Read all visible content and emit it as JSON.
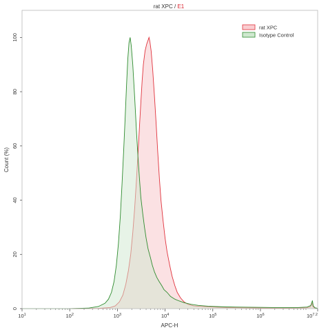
{
  "chart_data": {
    "type": "area",
    "title": {
      "main": "rat XPC",
      "separator": " / ",
      "gate": "E1",
      "gate_color": "#d9232e"
    },
    "xlabel": "APC-H",
    "ylabel": "Count (%)",
    "x_scale": "log10",
    "xlim": [
      10,
      15848932
    ],
    "ylim": [
      0,
      110
    ],
    "x_ticks": [
      {
        "value": 10,
        "base": "10",
        "exp": "1"
      },
      {
        "value": 100,
        "base": "10",
        "exp": "2"
      },
      {
        "value": 1000,
        "base": "10",
        "exp": "3"
      },
      {
        "value": 10000,
        "base": "10",
        "exp": "4"
      },
      {
        "value": 100000,
        "base": "10",
        "exp": "5"
      },
      {
        "value": 1000000,
        "base": "10",
        "exp": "6"
      },
      {
        "value": 15848932,
        "base": "10",
        "exp": "7.2"
      }
    ],
    "y_ticks": [
      0,
      20,
      40,
      60,
      80,
      100
    ],
    "legend_position": "top-right",
    "grid": false,
    "series": [
      {
        "name": "rat XPC",
        "stroke": "#e0323c",
        "fill": "#f9cdd0",
        "fill_opacity": 0.6,
        "points": [
          [
            10,
            0
          ],
          [
            100,
            0
          ],
          [
            400,
            0.1
          ],
          [
            700,
            0.4
          ],
          [
            900,
            1
          ],
          [
            1100,
            2.5
          ],
          [
            1300,
            5
          ],
          [
            1500,
            9
          ],
          [
            1700,
            14
          ],
          [
            1900,
            20
          ],
          [
            2100,
            28
          ],
          [
            2300,
            37
          ],
          [
            2500,
            47
          ],
          [
            2700,
            57
          ],
          [
            2900,
            67
          ],
          [
            3100,
            76
          ],
          [
            3300,
            84
          ],
          [
            3500,
            90
          ],
          [
            3800,
            95
          ],
          [
            4100,
            97.5
          ],
          [
            4400,
            99
          ],
          [
            4600,
            100
          ],
          [
            4800,
            98.5
          ],
          [
            5100,
            95
          ],
          [
            5500,
            88
          ],
          [
            6000,
            78
          ],
          [
            6500,
            68
          ],
          [
            7000,
            58
          ],
          [
            7600,
            48
          ],
          [
            8200,
            40
          ],
          [
            9000,
            33
          ],
          [
            10000,
            26
          ],
          [
            11000,
            21
          ],
          [
            12500,
            16
          ],
          [
            14000,
            12
          ],
          [
            16000,
            8.5
          ],
          [
            18000,
            6
          ],
          [
            21000,
            4
          ],
          [
            25000,
            2.5
          ],
          [
            30000,
            1.6
          ],
          [
            40000,
            1
          ],
          [
            60000,
            0.8
          ],
          [
            100000,
            0.6
          ],
          [
            200000,
            0.4
          ],
          [
            500000,
            0.3
          ],
          [
            1000000,
            0.25
          ],
          [
            3000000,
            0.2
          ],
          [
            9000000,
            0.3
          ],
          [
            11000000,
            0.6
          ],
          [
            12000000,
            2.2
          ],
          [
            12600000,
            0.8
          ],
          [
            13500000,
            0.3
          ],
          [
            15848932,
            0.1
          ]
        ]
      },
      {
        "name": "Isotype Control",
        "stroke": "#2e8b2e",
        "fill": "#cfe8cf",
        "fill_opacity": 0.5,
        "points": [
          [
            10,
            0
          ],
          [
            100,
            0
          ],
          [
            250,
            0.2
          ],
          [
            400,
            0.8
          ],
          [
            550,
            2
          ],
          [
            650,
            3.5
          ],
          [
            750,
            6
          ],
          [
            850,
            10
          ],
          [
            950,
            16
          ],
          [
            1050,
            24
          ],
          [
            1150,
            34
          ],
          [
            1250,
            46
          ],
          [
            1350,
            58
          ],
          [
            1450,
            70
          ],
          [
            1550,
            82
          ],
          [
            1650,
            92
          ],
          [
            1750,
            98
          ],
          [
            1850,
            100
          ],
          [
            1950,
            97
          ],
          [
            2100,
            90
          ],
          [
            2300,
            78
          ],
          [
            2500,
            66
          ],
          [
            2700,
            56
          ],
          [
            2900,
            48
          ],
          [
            3100,
            41
          ],
          [
            3400,
            35
          ],
          [
            3700,
            30
          ],
          [
            4000,
            26
          ],
          [
            4400,
            22
          ],
          [
            4900,
            19
          ],
          [
            5400,
            16
          ],
          [
            6000,
            13.5
          ],
          [
            6700,
            11.5
          ],
          [
            7500,
            10
          ],
          [
            8500,
            8.5
          ],
          [
            9500,
            7
          ],
          [
            11000,
            6
          ],
          [
            13000,
            4.5
          ],
          [
            16000,
            3.5
          ],
          [
            20000,
            2.8
          ],
          [
            25000,
            2.2
          ],
          [
            35000,
            1.6
          ],
          [
            50000,
            1.2
          ],
          [
            80000,
            0.9
          ],
          [
            150000,
            0.7
          ],
          [
            300000,
            0.6
          ],
          [
            800000,
            0.5
          ],
          [
            2000000,
            0.4
          ],
          [
            6000000,
            0.4
          ],
          [
            9500000,
            0.6
          ],
          [
            11500000,
            1.2
          ],
          [
            12300000,
            3
          ],
          [
            12800000,
            1
          ],
          [
            14000000,
            0.3
          ],
          [
            15848932,
            0.1
          ]
        ]
      }
    ]
  }
}
